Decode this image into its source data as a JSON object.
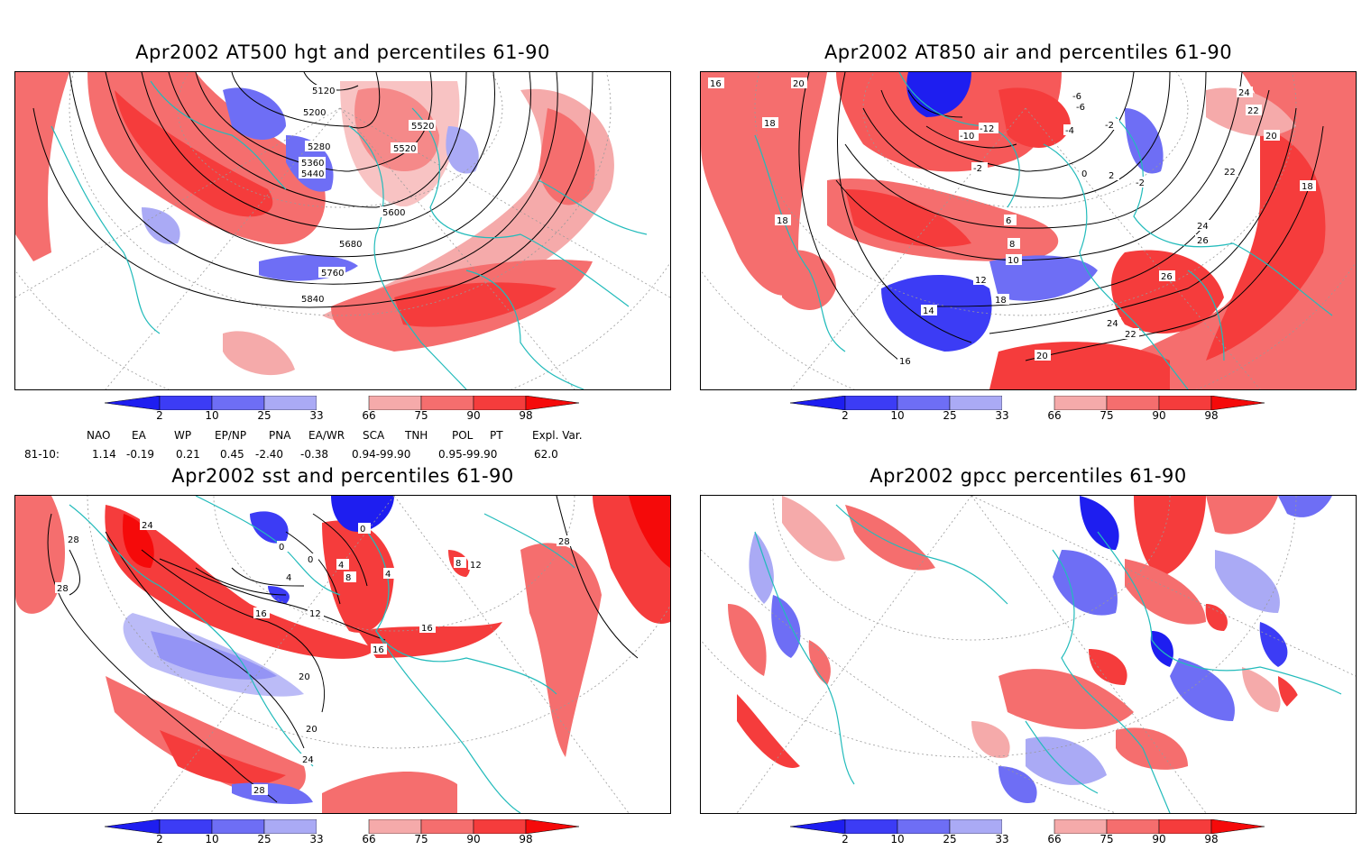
{
  "panels": [
    {
      "title": "Apr2002 AT500 hgt and percentiles 61-90",
      "contour_labels": [
        "5120",
        "5200",
        "5280",
        "5360",
        "5440",
        "5520",
        "5520",
        "5600",
        "5680",
        "5760",
        "5840"
      ]
    },
    {
      "title": "Apr2002 AT850 air and percentiles 61-90",
      "contour_labels": [
        "16",
        "20",
        "18",
        "18",
        "-10",
        "-12",
        "-2",
        "-4",
        "-2",
        "-6",
        "-6",
        "0",
        "2",
        "-2",
        "6",
        "8",
        "10",
        "12",
        "14",
        "16",
        "18",
        "20",
        "22",
        "24",
        "26",
        "26",
        "24",
        "22",
        "22",
        "24",
        "20",
        "18"
      ]
    },
    {
      "title": "Apr2002 sst and percentiles 61-90",
      "contour_labels": [
        "24",
        "28",
        "28",
        "0",
        "0",
        "0",
        "4",
        "4",
        "8",
        "4",
        "12",
        "16",
        "16",
        "16",
        "20",
        "20",
        "24",
        "28",
        "28",
        "8",
        "12"
      ]
    },
    {
      "title": "Apr2002 gpcc percentiles 61-90",
      "contour_labels": []
    }
  ],
  "colorbar": {
    "ticks": [
      "2",
      "10",
      "25",
      "33",
      "66",
      "75",
      "90",
      "98"
    ],
    "colors": {
      "lt2": "#1e1ef0",
      "b10": "#3c3cf5",
      "b25": "#6e6ef5",
      "b33": "#aaaaf5",
      "r66": "#f5aaaa",
      "r75": "#f56e6e",
      "r90": "#f53c3c",
      "gt98": "#f50a0a"
    }
  },
  "indices": {
    "headers": [
      "NAO",
      "EA",
      "WP",
      "EP/NP",
      "PNA",
      "EA/WR",
      "SCA",
      "TNH",
      "POL",
      "PT",
      "Expl. Var."
    ],
    "row_label": "81-10:",
    "values": [
      "1.14",
      "-0.19",
      "0.21",
      "0.45",
      "-2.40",
      "-0.38",
      "0.94-99.90",
      "0.95-99.90",
      "62.0"
    ]
  },
  "colors": {
    "coast": "#22bbbb",
    "contour": "#000000",
    "grid": "#999999"
  }
}
